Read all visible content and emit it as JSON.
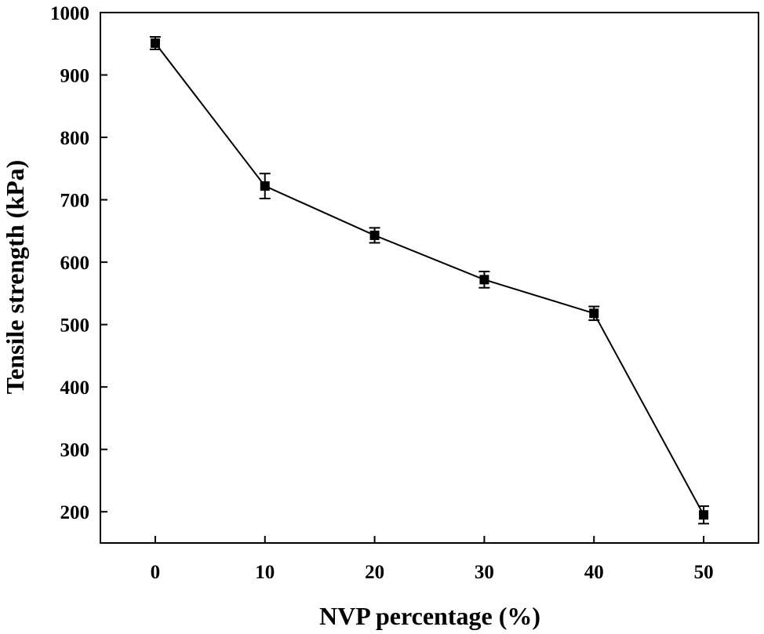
{
  "chart_data": {
    "type": "line",
    "title": "",
    "xlabel": "NVP percentage (%)",
    "ylabel": "Tensile strength (kPa)",
    "x": [
      0,
      10,
      20,
      30,
      40,
      50
    ],
    "xticks": [
      "0",
      "10",
      "20",
      "30",
      "40",
      "50"
    ],
    "yticks": [
      "200",
      "300",
      "400",
      "500",
      "600",
      "700",
      "800",
      "900",
      "1000"
    ],
    "xlim": [
      -5,
      55
    ],
    "ylim": [
      150,
      1000
    ],
    "grid": false,
    "series": [
      {
        "name": "Tensile strength",
        "color": "#000000",
        "marker": "square",
        "values": [
          951,
          722,
          643,
          572,
          518,
          195
        ],
        "errors": [
          10,
          20,
          12,
          13,
          11,
          14
        ]
      }
    ]
  }
}
